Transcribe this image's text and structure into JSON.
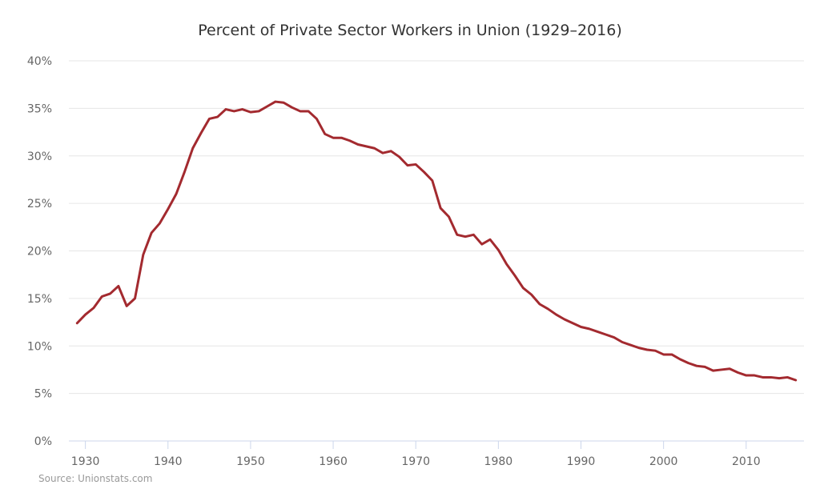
{
  "chart_data": {
    "type": "line",
    "title": "Percent of Private Sector Workers in Union (1929–2016)",
    "xlabel": "",
    "ylabel": "",
    "xlim": [
      1928,
      2017
    ],
    "ylim": [
      0,
      40
    ],
    "x_ticks": [
      1930,
      1940,
      1950,
      1960,
      1970,
      1980,
      1990,
      2000,
      2010
    ],
    "y_ticks": [
      0,
      5,
      10,
      15,
      20,
      25,
      30,
      35,
      40
    ],
    "y_tick_labels": [
      "0%",
      "5%",
      "10%",
      "15%",
      "20%",
      "25%",
      "30%",
      "35%",
      "40%"
    ],
    "grid": true,
    "legend": "none",
    "line_color": "#a32a2f",
    "source": "Source: Unionstats.com",
    "series": [
      {
        "x": [
          1929,
          1930,
          1931,
          1932,
          1933,
          1934,
          1935,
          1936,
          1937,
          1938,
          1939,
          1940,
          1941,
          1942,
          1943,
          1944,
          1945,
          1946,
          1947,
          1948,
          1949,
          1950,
          1951,
          1952,
          1953,
          1954,
          1955,
          1956,
          1957,
          1958,
          1959,
          1960,
          1961,
          1962,
          1963,
          1964,
          1965,
          1966,
          1967,
          1968,
          1969,
          1970,
          1971,
          1972,
          1973,
          1974,
          1975,
          1976,
          1977,
          1978,
          1979,
          1980,
          1981,
          1982,
          1983,
          1984,
          1985,
          1986,
          1987,
          1988,
          1989,
          1990,
          1991,
          1992,
          1993,
          1994,
          1995,
          1996,
          1997,
          1998,
          1999,
          2000,
          2001,
          2002,
          2003,
          2004,
          2005,
          2006,
          2007,
          2008,
          2009,
          2010,
          2011,
          2012,
          2013,
          2014,
          2015,
          2016
        ],
        "values": [
          12.4,
          13.3,
          14.0,
          15.2,
          15.5,
          16.3,
          14.2,
          15.0,
          19.6,
          21.9,
          22.9,
          24.4,
          26.0,
          28.3,
          30.8,
          32.4,
          33.9,
          34.1,
          34.9,
          34.7,
          34.9,
          34.6,
          34.7,
          35.2,
          35.7,
          35.6,
          35.1,
          34.7,
          34.7,
          33.9,
          32.3,
          31.9,
          31.9,
          31.6,
          31.2,
          31.0,
          30.8,
          30.3,
          30.5,
          29.9,
          29.0,
          29.1,
          28.3,
          27.4,
          24.5,
          23.6,
          21.7,
          21.5,
          21.7,
          20.7,
          21.2,
          20.1,
          18.6,
          17.4,
          16.1,
          15.4,
          14.4,
          13.9,
          13.3,
          12.8,
          12.4,
          12.0,
          11.8,
          11.5,
          11.2,
          10.9,
          10.4,
          10.1,
          9.8,
          9.6,
          9.5,
          9.1,
          9.1,
          8.6,
          8.2,
          7.9,
          7.8,
          7.4,
          7.5,
          7.6,
          7.2,
          6.9,
          6.9,
          6.7,
          6.7,
          6.6,
          6.7,
          6.4
        ]
      }
    ]
  }
}
